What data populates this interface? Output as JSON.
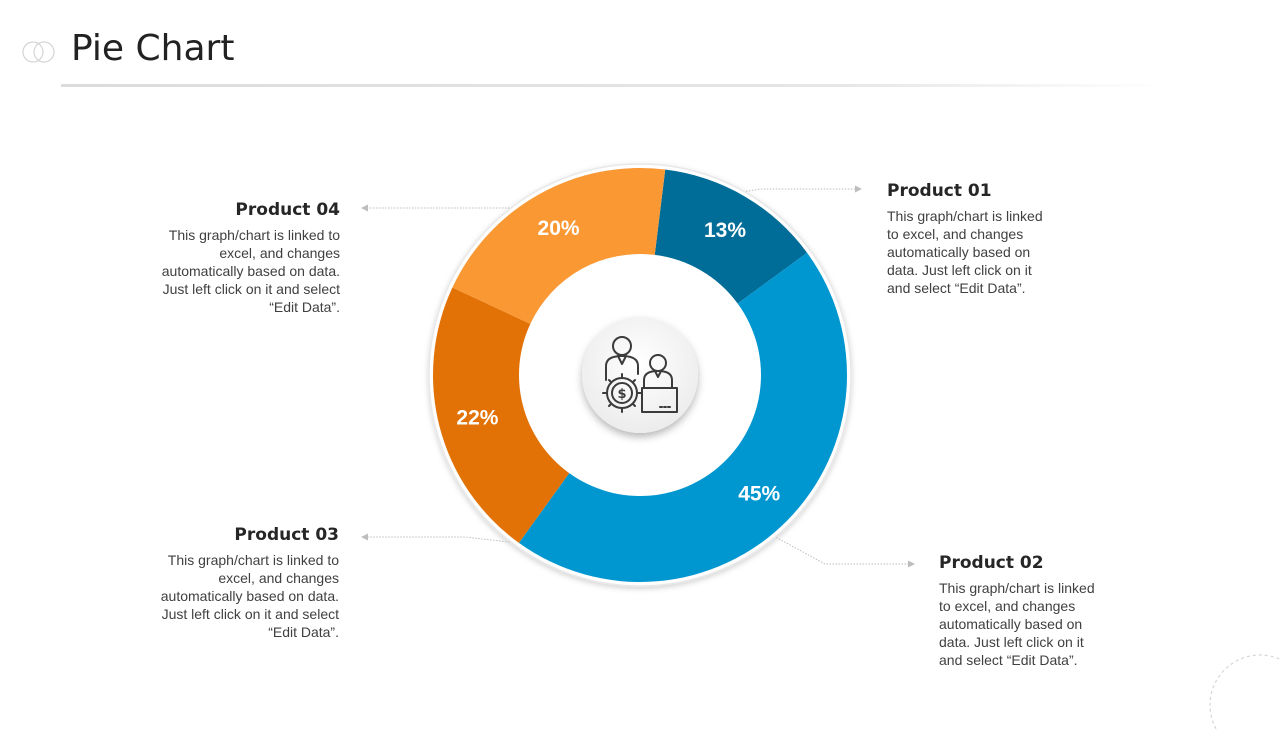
{
  "title": "Pie Chart",
  "chart_data": {
    "type": "pie",
    "donut": true,
    "slices": [
      {
        "label": "Product 01",
        "value": 13,
        "display": "13%",
        "color": "#006C98"
      },
      {
        "label": "Product 02",
        "value": 45,
        "display": "45%",
        "color": "#0097D1"
      },
      {
        "label": "Product 03",
        "value": 22,
        "display": "22%",
        "color": "#E27206"
      },
      {
        "label": "Product 04",
        "value": 20,
        "display": "20%",
        "color": "#FA9834"
      }
    ],
    "center_icon": "business-people-money-gear-icon"
  },
  "products": [
    {
      "name": "Product 01",
      "description": "This graph/chart is linked to excel, and changes automatically based on data. Just left click on it and select “Edit Data”."
    },
    {
      "name": "Product 02",
      "description": "This graph/chart is linked to excel, and changes automatically based on data. Just left click on it and select “Edit Data”."
    },
    {
      "name": "Product 03",
      "description": "This graph/chart is linked to excel, and changes automatically based on data. Just left click on it and select “Edit Data”."
    },
    {
      "name": "Product 04",
      "description": "This graph/chart is linked to excel, and changes automatically based on data. Just left click on it and select “Edit Data”."
    }
  ]
}
